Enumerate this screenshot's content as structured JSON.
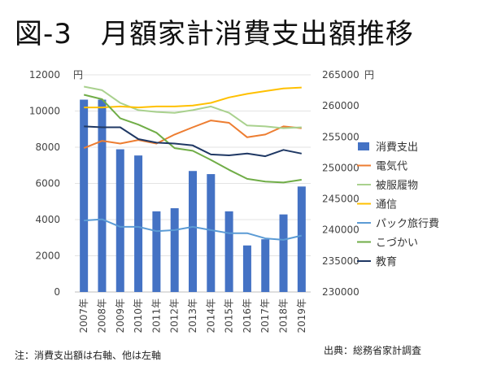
{
  "page": {
    "title": "図-3　月額家計消費支出額推移",
    "note": "注：消費支出額は右軸、他は左軸",
    "source": "出典：総務省家計調査"
  },
  "chart_data": {
    "type": "bar+line",
    "categories": [
      "2007年",
      "2008年",
      "2009年",
      "2010年",
      "2011年",
      "2012年",
      "2013年",
      "2014年",
      "2015年",
      "2016年",
      "2017年",
      "2018年",
      "2019年"
    ],
    "left_axis": {
      "unit": "円",
      "min": 0,
      "max": 12000,
      "ticks": [
        0,
        2000,
        4000,
        6000,
        8000,
        10000,
        12000
      ],
      "tick_labels": [
        "0",
        "2000",
        "4000",
        "6000",
        "8000",
        "10000",
        "12000"
      ]
    },
    "right_axis": {
      "unit": "円",
      "min": 230000,
      "max": 265000,
      "ticks": [
        230000,
        235000,
        240000,
        245000,
        250000,
        255000,
        260000,
        265000
      ],
      "tick_labels": [
        "230000",
        "235000",
        "240000",
        "245000",
        "250000",
        "255000",
        "260000",
        "265000"
      ]
    },
    "bar_series": {
      "name": "消費支出",
      "axis": "right",
      "color": "#4472C4",
      "values": [
        261000,
        261000,
        253000,
        252000,
        243000,
        243500,
        249500,
        249000,
        243000,
        237500,
        238500,
        242500,
        247000
      ]
    },
    "line_series": [
      {
        "name": "電気代",
        "color": "#ED7D31",
        "values": [
          7950,
          8350,
          8200,
          8400,
          8200,
          8700,
          9100,
          9480,
          9350,
          8550,
          8700,
          9150,
          9050
        ]
      },
      {
        "name": "被服履物",
        "color": "#A9D18E",
        "values": [
          11350,
          11150,
          10450,
          10050,
          9950,
          9900,
          10050,
          10250,
          9900,
          9200,
          9150,
          9050,
          9100
        ]
      },
      {
        "name": "通信",
        "color": "#FFC000",
        "values": [
          10200,
          10200,
          10250,
          10200,
          10250,
          10250,
          10300,
          10450,
          10750,
          10950,
          11100,
          11250,
          11300
        ]
      },
      {
        "name": "パック旅行費",
        "color": "#5B9BD5",
        "values": [
          3950,
          4020,
          3600,
          3600,
          3360,
          3420,
          3600,
          3420,
          3250,
          3250,
          2960,
          2880,
          3120
        ]
      },
      {
        "name": "こづかい",
        "color": "#70AD47",
        "values": [
          10900,
          10650,
          9600,
          9250,
          8800,
          7950,
          7800,
          7300,
          6750,
          6250,
          6100,
          6050,
          6200
        ]
      },
      {
        "name": "教育",
        "color": "#1F3864",
        "values": [
          9150,
          9100,
          9100,
          8450,
          8250,
          8200,
          8100,
          7600,
          7550,
          7650,
          7500,
          7850,
          7650
        ]
      }
    ]
  }
}
